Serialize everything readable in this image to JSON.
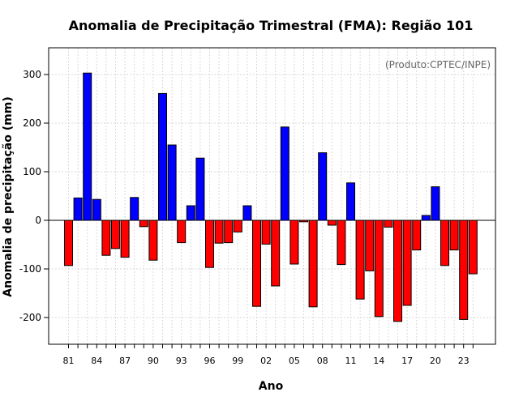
{
  "chart_data": {
    "type": "bar",
    "title": "Anomalia de Precipitação Trimestral (FMA): Região 101",
    "xlabel": "Ano",
    "ylabel": "Anomalia de precipitação (mm)",
    "credit": "(Produto:CPTEC/INPE)",
    "ylim": [
      -255,
      355
    ],
    "yticks": [
      -200,
      -100,
      0,
      100,
      200,
      300
    ],
    "ytick_labels": [
      "-200",
      "-100",
      "0",
      "100",
      "200",
      "300"
    ],
    "xtick_labels": [
      "81",
      "84",
      "87",
      "90",
      "93",
      "96",
      "99",
      "02",
      "05",
      "08",
      "11",
      "14",
      "17",
      "20",
      "23"
    ],
    "grid": true,
    "categories": [
      "1981",
      "1982",
      "1983",
      "1984",
      "1985",
      "1986",
      "1987",
      "1988",
      "1989",
      "1990",
      "1991",
      "1992",
      "1993",
      "1994",
      "1995",
      "1996",
      "1997",
      "1998",
      "1999",
      "2000",
      "2001",
      "2002",
      "2003",
      "2004",
      "2005",
      "2006",
      "2007",
      "2008",
      "2009",
      "2010",
      "2011",
      "2012",
      "2013",
      "2014",
      "2015",
      "2016",
      "2017",
      "2018",
      "2019",
      "2020",
      "2021",
      "2022",
      "2023",
      "2024"
    ],
    "values": [
      -93,
      46,
      303,
      43,
      -72,
      -58,
      -76,
      47,
      -13,
      -82,
      261,
      155,
      -46,
      30,
      128,
      -97,
      -47,
      -46,
      -24,
      30,
      -177,
      -49,
      -135,
      192,
      -90,
      -3,
      -178,
      139,
      -10,
      -91,
      77,
      -162,
      -104,
      -198,
      -14,
      -208,
      -175,
      -61,
      10,
      69,
      -93,
      -61,
      -204,
      -110
    ],
    "colors": {
      "positive": "#0000ff",
      "negative": "#ff0000",
      "grid": "#d9d9d9",
      "frame": "#000000"
    }
  }
}
